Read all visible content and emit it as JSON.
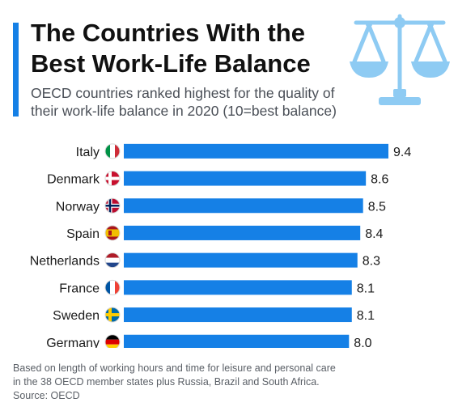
{
  "header": {
    "title_line1": "The Countries With the",
    "title_line2": "Best Work-Life Balance",
    "subtitle_line1": "OECD countries ranked highest for the quality of",
    "subtitle_line2": "their work-life balance in 2020 (10=best balance)"
  },
  "footer": {
    "note_line1": "Based on length of working hours and time for leisure and personal care",
    "note_line2": "in the 38 OECD member states plus Russia, Brazil and South Africa.",
    "source": "Source: OECD"
  },
  "colors": {
    "accent": "#1580e6",
    "bar": "#1580e6",
    "illustration": "#8ecbf3"
  },
  "chart_data": {
    "type": "bar",
    "orientation": "horizontal",
    "categories": [
      "Italy",
      "Denmark",
      "Norway",
      "Spain",
      "Netherlands",
      "France",
      "Sweden",
      "Germany"
    ],
    "values": [
      9.4,
      8.6,
      8.5,
      8.4,
      8.3,
      8.1,
      8.1,
      8.0
    ],
    "value_labels": [
      "9.4",
      "8.6",
      "8.5",
      "8.4",
      "8.3",
      "8.1",
      "8.1",
      "8.0"
    ],
    "flags": [
      "italy-flag-icon",
      "denmark-flag-icon",
      "norway-flag-icon",
      "spain-flag-icon",
      "netherlands-flag-icon",
      "france-flag-icon",
      "sweden-flag-icon",
      "germany-flag-icon"
    ],
    "xlim": [
      0,
      9.4
    ],
    "grid": false,
    "legend": "none"
  }
}
